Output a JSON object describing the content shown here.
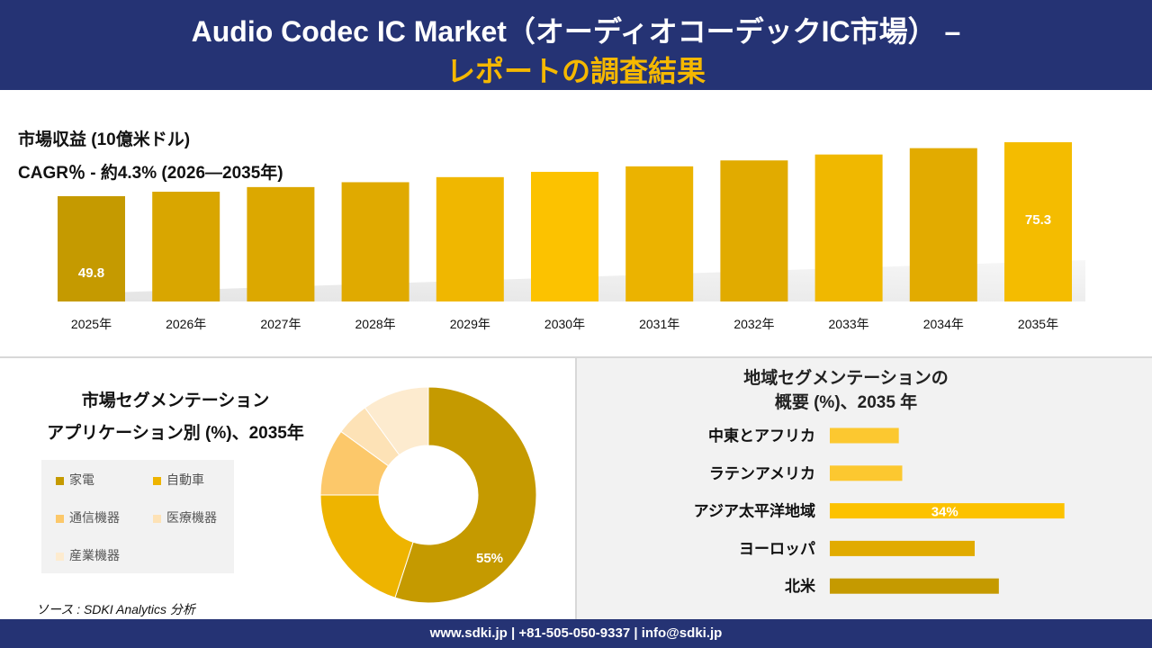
{
  "header": {
    "title_line1": "Audio Codec IC Market（オーディオコーデックIC市場） –",
    "title_line2": "レポートの調査結果"
  },
  "revenue": {
    "label": "市場収益 (10億米ドル)",
    "cagr": "CAGR％ - 約4.3% (2026―2035年)"
  },
  "segment": {
    "title_line1": "市場セグメンテーション",
    "title_line2": "アプリケーション別 (%)、2035年"
  },
  "region": {
    "title_line1": "地域セグメンテーションの",
    "title_line2": "概要 (%)、2035 年"
  },
  "source": "ソース : SDKI Analytics 分析",
  "footer": "www.sdki.jp | +81-505-050-9337 | info@sdki.jp",
  "chart_data": [
    {
      "type": "bar",
      "title": "市場収益 (10億米ドル)",
      "categories": [
        "2025年",
        "2026年",
        "2027年",
        "2028年",
        "2029年",
        "2030年",
        "2031年",
        "2032年",
        "2033年",
        "2034年",
        "2035年"
      ],
      "values": [
        49.8,
        51.9,
        54.1,
        56.4,
        58.8,
        61.3,
        63.9,
        66.7,
        69.5,
        72.5,
        75.3
      ],
      "data_labels": {
        "0": "49.8",
        "10": "75.3"
      },
      "colors": [
        "#c59a00",
        "#d9a600",
        "#dca800",
        "#e0aa00",
        "#f0b700",
        "#fcc200",
        "#ebb300",
        "#e1ab00",
        "#f0b800",
        "#e2ab00",
        "#f4bc00"
      ],
      "ylim": [
        0,
        80
      ]
    },
    {
      "type": "pie",
      "title": "アプリケーション別 (%)、2035年",
      "labels": [
        "家電",
        "自動車",
        "通信機器",
        "医療機器",
        "産業機器"
      ],
      "values": [
        55,
        20,
        10,
        5,
        10
      ],
      "data_labels": {
        "0": "55%"
      },
      "colors": [
        "#c59a00",
        "#eeb400",
        "#fcc86a",
        "#fde2b6",
        "#fdebcf"
      ]
    },
    {
      "type": "bar",
      "orientation": "horizontal",
      "title": "地域セグメンテーションの概要 (%)、2035 年",
      "categories": [
        "中東とアフリカ",
        "ラテンアメリカ",
        "アジア太平洋地域",
        "ヨーロッパ",
        "北米"
      ],
      "values": [
        10,
        10.5,
        34,
        21,
        24.5
      ],
      "data_labels": {
        "2": "34%"
      },
      "colors": [
        "#fcc830",
        "#fcc830",
        "#fcc200",
        "#e1ab00",
        "#c59a00"
      ],
      "xlim": [
        0,
        36
      ]
    }
  ]
}
